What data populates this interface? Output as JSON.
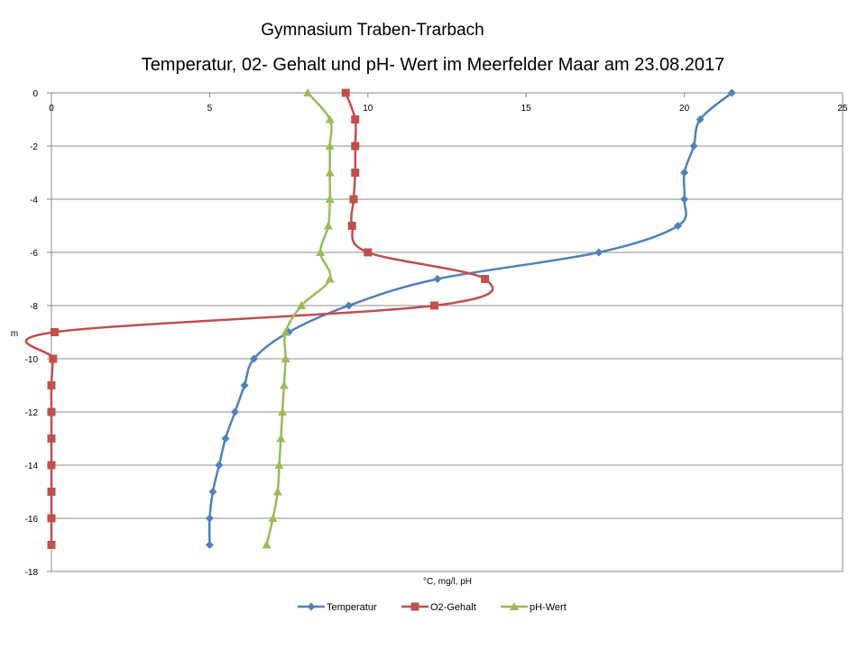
{
  "chart_data": {
    "type": "line",
    "title": "Gymnasium Traben-Trarbach",
    "subtitle": "Temperatur, 02- Gehalt und pH- Wert im Meerfelder Maar am 23.08.2017",
    "xlabel": "°C, mg/l, pH",
    "ylabel": "m",
    "xlim": [
      0,
      25
    ],
    "ylim": [
      -18,
      0
    ],
    "xticks": [
      0,
      5,
      10,
      15,
      20,
      25
    ],
    "yticks": [
      0,
      -2,
      -4,
      -6,
      -8,
      -10,
      -12,
      -14,
      -16,
      -18
    ],
    "grid": "horizontal",
    "legend_position": "bottom",
    "series": [
      {
        "name": "Temperatur",
        "color": "#4F81BD",
        "marker": "diamond",
        "points": [
          [
            21.5,
            0
          ],
          [
            20.5,
            -1
          ],
          [
            20.3,
            -2
          ],
          [
            20.0,
            -3
          ],
          [
            20.0,
            -4
          ],
          [
            19.8,
            -5
          ],
          [
            17.3,
            -6
          ],
          [
            12.2,
            -7
          ],
          [
            9.4,
            -8
          ],
          [
            7.5,
            -9
          ],
          [
            6.4,
            -10
          ],
          [
            6.1,
            -11
          ],
          [
            5.8,
            -12
          ],
          [
            5.5,
            -13
          ],
          [
            5.3,
            -14
          ],
          [
            5.1,
            -15
          ],
          [
            5.0,
            -16
          ],
          [
            5.0,
            -17
          ]
        ]
      },
      {
        "name": "O2-Gehalt",
        "color": "#C0504D",
        "marker": "square",
        "points": [
          [
            9.3,
            0
          ],
          [
            9.6,
            -1
          ],
          [
            9.6,
            -2
          ],
          [
            9.6,
            -3
          ],
          [
            9.55,
            -4
          ],
          [
            9.5,
            -5
          ],
          [
            10.0,
            -6
          ],
          [
            13.7,
            -7
          ],
          [
            12.1,
            -8
          ],
          [
            0.1,
            -9
          ],
          [
            0.05,
            -10
          ],
          [
            0.0,
            -11
          ],
          [
            0.0,
            -12
          ],
          [
            0.0,
            -13
          ],
          [
            0.0,
            -14
          ],
          [
            0.0,
            -15
          ],
          [
            0.0,
            -16
          ],
          [
            0.0,
            -17
          ]
        ]
      },
      {
        "name": "pH-Wert",
        "color": "#9BBB59",
        "marker": "triangle",
        "points": [
          [
            8.1,
            0
          ],
          [
            8.8,
            -1
          ],
          [
            8.8,
            -2
          ],
          [
            8.8,
            -3
          ],
          [
            8.8,
            -4
          ],
          [
            8.75,
            -5
          ],
          [
            8.5,
            -6
          ],
          [
            8.8,
            -7
          ],
          [
            7.9,
            -8
          ],
          [
            7.4,
            -9
          ],
          [
            7.4,
            -10
          ],
          [
            7.35,
            -11
          ],
          [
            7.3,
            -12
          ],
          [
            7.25,
            -13
          ],
          [
            7.2,
            -14
          ],
          [
            7.15,
            -15
          ],
          [
            7.0,
            -16
          ],
          [
            6.8,
            -17
          ]
        ]
      }
    ]
  }
}
